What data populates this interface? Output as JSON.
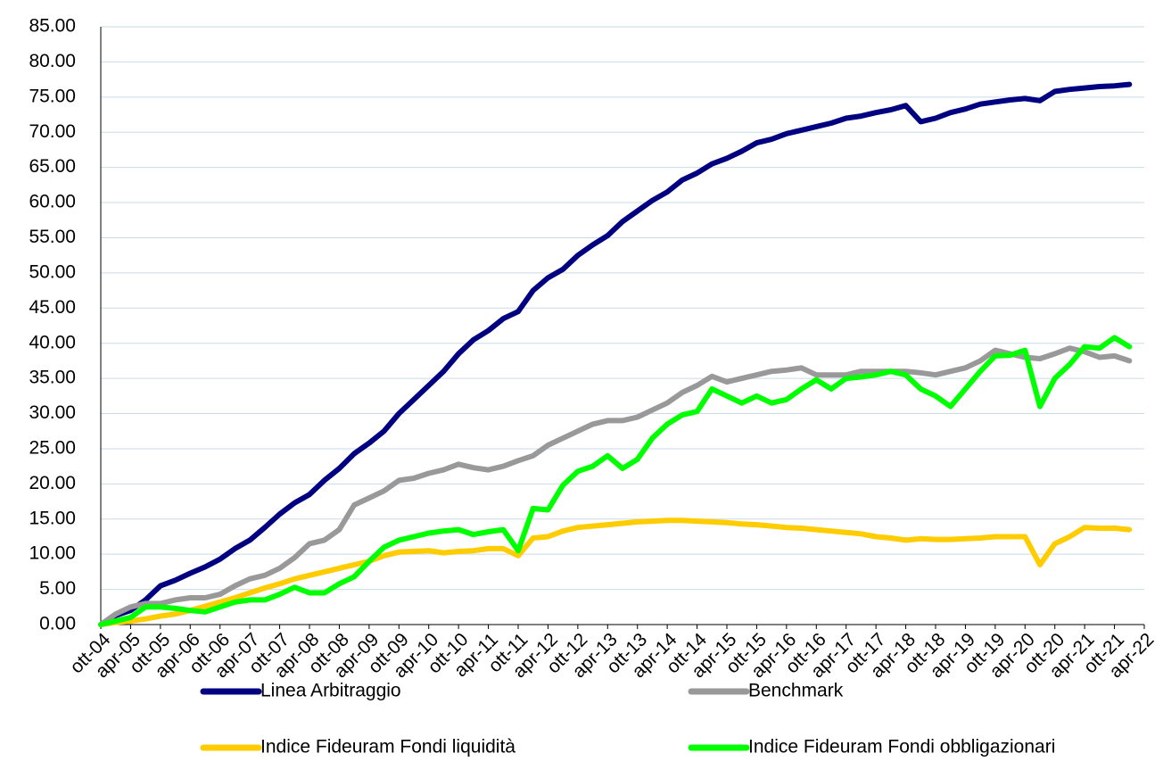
{
  "chart_data": {
    "type": "line",
    "categories": [
      "ott-04",
      null,
      "apr-05",
      null,
      "ott-05",
      null,
      "apr-06",
      null,
      "ott-06",
      null,
      "apr-07",
      null,
      "ott-07",
      null,
      "apr-08",
      null,
      "ott-08",
      null,
      "apr-09",
      null,
      "ott-09",
      null,
      "apr-10",
      null,
      "ott-10",
      null,
      "apr-11",
      null,
      "ott-11",
      null,
      "apr-12",
      null,
      "ott-12",
      null,
      "apr-13",
      null,
      "ott-13",
      null,
      "apr-14",
      null,
      "ott-14",
      null,
      "apr-15",
      null,
      "ott-15",
      null,
      "apr-16",
      null,
      "ott-16",
      null,
      "apr-17",
      null,
      "ott-17",
      null,
      "apr-18",
      null,
      "ott-18",
      null,
      "apr-19",
      null,
      "ott-19",
      null,
      "apr-20",
      null,
      "ott-20",
      null,
      "apr-21",
      null,
      "ott-21",
      null,
      "apr-22"
    ],
    "series": [
      {
        "name": "Linea Arbitraggio",
        "color": "#000080",
        "values": [
          0,
          1.3,
          2,
          3.5,
          5.5,
          6.3,
          7.3,
          8.2,
          9.3,
          10.8,
          12,
          13.8,
          15.7,
          17.3,
          18.5,
          20.5,
          22.2,
          24.3,
          25.8,
          27.5,
          30,
          32,
          34,
          36,
          38.5,
          40.5,
          41.8,
          43.5,
          44.5,
          47.5,
          49.3,
          50.5,
          52.5,
          54,
          55.3,
          57.3,
          58.8,
          60.3,
          61.5,
          63.2,
          64.2,
          65.5,
          66.3,
          67.3,
          68.5,
          69,
          69.8,
          70.3,
          70.8,
          71.3,
          72,
          72.3,
          72.8,
          73.2,
          73.8,
          71.5,
          72,
          72.8,
          73.3,
          74,
          74.3,
          74.6,
          74.8,
          74.5,
          75.8,
          76.1,
          76.3,
          76.5,
          76.6,
          76.8,
          null
        ]
      },
      {
        "name": "Benchmark",
        "color": "#999999",
        "values": [
          0,
          1.5,
          2.5,
          3,
          3,
          3.5,
          3.8,
          3.8,
          4.3,
          5.5,
          6.5,
          7,
          8,
          9.5,
          11.5,
          12,
          13.5,
          17,
          18,
          19,
          20.5,
          20.8,
          21.5,
          22,
          22.8,
          22.3,
          22,
          22.5,
          23.3,
          24,
          25.5,
          26.5,
          27.5,
          28.5,
          29,
          29,
          29.5,
          30.5,
          31.5,
          33,
          34,
          35.3,
          34.5,
          35,
          35.5,
          36,
          36.2,
          36.5,
          35.5,
          35.5,
          35.5,
          36,
          36,
          36,
          36,
          35.8,
          35.5,
          36,
          36.5,
          37.5,
          39,
          38.5,
          38,
          37.8,
          38.5,
          39.3,
          38.8,
          38,
          38.2,
          37.5,
          null
        ]
      },
      {
        "name": "Indice Fideuram Fondi liquidità",
        "color": "#ffcc00",
        "values": [
          0,
          0.3,
          0.5,
          0.8,
          1.2,
          1.5,
          2,
          2.6,
          3.2,
          3.8,
          4.5,
          5.2,
          5.8,
          6.5,
          7,
          7.5,
          8,
          8.5,
          9,
          9.8,
          10.3,
          10.4,
          10.5,
          10.2,
          10.4,
          10.5,
          10.8,
          10.8,
          9.8,
          12.3,
          12.5,
          13.3,
          13.8,
          14,
          14.2,
          14.4,
          14.6,
          14.7,
          14.8,
          14.8,
          14.7,
          14.6,
          14.5,
          14.3,
          14.2,
          14,
          13.8,
          13.7,
          13.5,
          13.3,
          13.1,
          12.9,
          12.5,
          12.3,
          12,
          12.2,
          12.1,
          12.1,
          12.2,
          12.3,
          12.5,
          12.5,
          12.5,
          8.5,
          11.5,
          12.5,
          13.8,
          13.7,
          13.7,
          13.5,
          null
        ]
      },
      {
        "name": "Indice Fideuram Fondi obbligazionari",
        "color": "#00ff00",
        "values": [
          0,
          0.5,
          1,
          2.5,
          2.5,
          2.3,
          2,
          1.8,
          2.5,
          3.2,
          3.5,
          3.5,
          4.3,
          5.3,
          4.5,
          4.5,
          5.8,
          6.8,
          9,
          11,
          12,
          12.5,
          13,
          13.3,
          13.5,
          12.8,
          13.2,
          13.5,
          10.5,
          16.5,
          16.3,
          19.8,
          21.8,
          22.5,
          24,
          22.2,
          23.5,
          26.5,
          28.5,
          29.8,
          30.3,
          33.5,
          32.5,
          31.5,
          32.5,
          31.5,
          32,
          33.5,
          34.8,
          33.5,
          35,
          35.2,
          35.5,
          36,
          35.5,
          33.5,
          32.5,
          31,
          33.5,
          36,
          38.2,
          38.3,
          39,
          31,
          35,
          37,
          39.5,
          39.3,
          40.8,
          39.5,
          null
        ]
      }
    ],
    "ylim": [
      0,
      85
    ],
    "yticks": [
      {
        "value": 0,
        "label": "0.00"
      },
      {
        "value": 5,
        "label": "5.00"
      },
      {
        "value": 10,
        "label": "10.00"
      },
      {
        "value": 15,
        "label": "15.00"
      },
      {
        "value": 20,
        "label": "20.00"
      },
      {
        "value": 25,
        "label": "25.00"
      },
      {
        "value": 30,
        "label": "30.00"
      },
      {
        "value": 35,
        "label": "35.00"
      },
      {
        "value": 40,
        "label": "40.00"
      },
      {
        "value": 45,
        "label": "45.00"
      },
      {
        "value": 50,
        "label": "50.00"
      },
      {
        "value": 55,
        "label": "55.00"
      },
      {
        "value": 60,
        "label": "60.00"
      },
      {
        "value": 65,
        "label": "65.00"
      },
      {
        "value": 70,
        "label": "70.00"
      },
      {
        "value": 75,
        "label": "75.00"
      },
      {
        "value": 80,
        "label": "80.00"
      },
      {
        "value": 85,
        "label": "85.00"
      }
    ],
    "grid": true,
    "legend": "bottom"
  }
}
